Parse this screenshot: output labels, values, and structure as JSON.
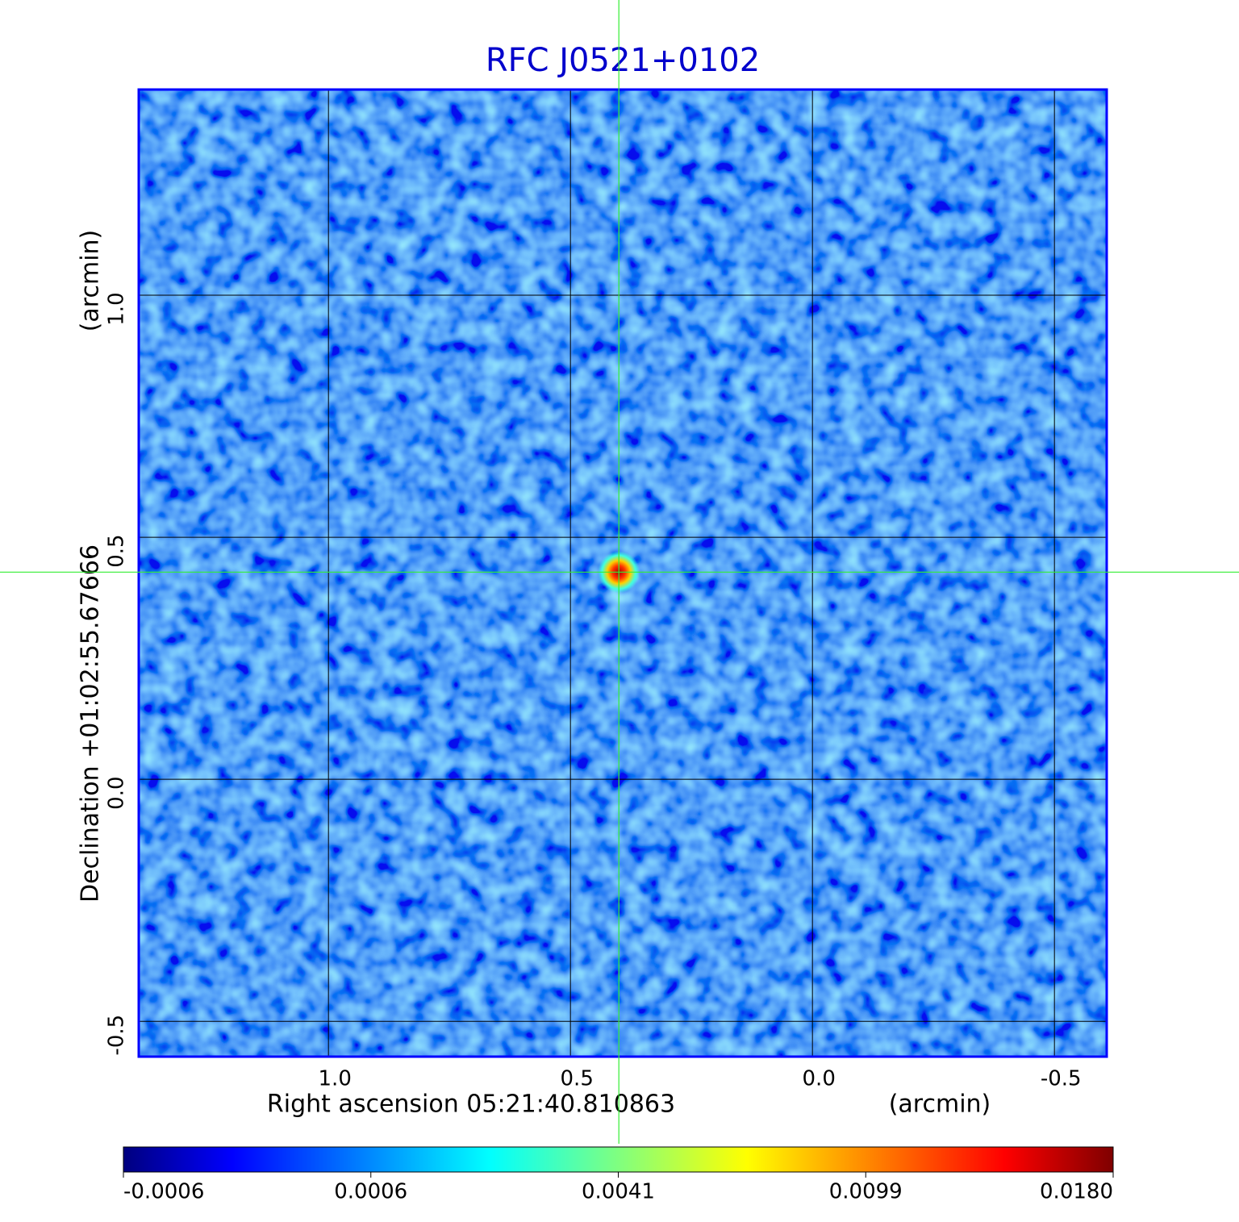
{
  "chart_data": {
    "type": "image",
    "title": "RFC J0521+0102",
    "x_label": "Right ascension  05:21:40.810863",
    "x_unit": "(arcmin)",
    "y_label": "Declination  +01:02:55.67666",
    "y_unit": "(arcmin)",
    "xlim": [
      1.392,
      -0.608
    ],
    "ylim": [
      -0.573,
      1.425
    ],
    "xticks": [
      {
        "value": 1,
        "label": "1.0"
      },
      0.5,
      {
        "value": 0,
        "label": "0.0"
      },
      -0.5
    ],
    "yticks": [
      -0.5,
      {
        "value": 0,
        "label": "0.0"
      },
      0.5,
      {
        "value": 1,
        "label": "1.0"
      }
    ],
    "grid": true,
    "crosshair": {
      "x": 0.4,
      "y": 0.428
    },
    "colorbar": {
      "ticks": [
        -0.0006,
        0.0006,
        0.0041,
        0.0099,
        {
          "value": 0.018,
          "label": "0.0180"
        }
      ],
      "colormap": [
        "#00007f",
        "#0000ff",
        "#00ffff",
        "#ffff00",
        "#ff0000",
        "#7f0000"
      ]
    }
  }
}
